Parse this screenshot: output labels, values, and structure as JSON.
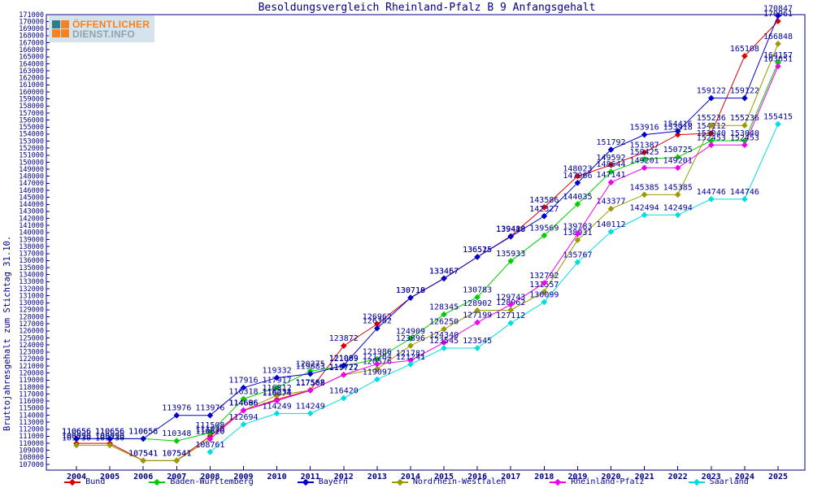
{
  "title": "Besoldungsvergleich Rheinland-Pfalz B 9 Anfangsgehalt",
  "y_axis_title": "Bruttojahresgehalt zum Stichtag 31.10.",
  "logo": {
    "line1": "ÖFFENTLICHER",
    "line2": "DIENST.INFO"
  },
  "colors": {
    "axis": "#000080",
    "labels": "#000099",
    "background": "#ffffff"
  },
  "chart_data": {
    "type": "line",
    "title": "Besoldungsvergleich Rheinland-Pfalz B 9 Anfangsgehalt",
    "ylabel": "Bruttojahresgehalt zum Stichtag 31.10.",
    "xlabel": "",
    "grid": false,
    "legend_position": "bottom",
    "ylim": [
      107000,
      171000
    ],
    "ytick_step": 1000,
    "x": [
      2004,
      2005,
      2006,
      2007,
      2008,
      2009,
      2010,
      2011,
      2012,
      2013,
      2014,
      2015,
      2016,
      2017,
      2018,
      2019,
      2020,
      2021,
      2022,
      2023,
      2024,
      2025
    ],
    "series": [
      {
        "name": "Bund",
        "color": "#dd0000",
        "values": [
          109990,
          109990,
          107541,
          107541,
          111020,
          114686,
          116234,
          117568,
          123872,
          126962,
          130710,
          133457,
          136515,
          139488,
          143586,
          148023,
          149592,
          151387,
          153918,
          154112,
          165108,
          170061
        ]
      },
      {
        "name": "Baden-Württemberg",
        "color": "#00cc00",
        "values": [
          110656,
          110656,
          110656,
          110348,
          111508,
          116318,
          117917,
          120275,
          121009,
          121986,
          124909,
          128345,
          130783,
          135933,
          139569,
          144035,
          148644,
          150425,
          150725,
          153040,
          153040,
          164157
        ]
      },
      {
        "name": "Bayern",
        "color": "#0000cc",
        "values": [
          110656,
          110656,
          110656,
          113976,
          113976,
          117916,
          119332,
          119883,
          121089,
          126362,
          130718,
          133467,
          136525,
          139418,
          142327,
          147066,
          151792,
          153916,
          154416,
          159122,
          159122,
          170847
        ]
      },
      {
        "name": "Nordrhein-Westfalen",
        "color": "#999900",
        "values": [
          109730,
          109730,
          107541,
          107541,
          110620,
          114696,
          116812,
          117562,
          119727,
          120576,
          123896,
          126250,
          128902,
          128962,
          131557,
          138931,
          143377,
          145385,
          145385,
          155236,
          155236,
          166848
        ]
      },
      {
        "name": "Rheinland-Pfalz",
        "color": "#ee00ee",
        "values": [
          null,
          null,
          null,
          null,
          110620,
          114686,
          116074,
          117508,
          119772,
          121284,
          121782,
          124340,
          127199,
          129743,
          132792,
          139783,
          147141,
          149201,
          149201,
          152453,
          152453,
          163651
        ]
      },
      {
        "name": "Saarland",
        "color": "#00dddd",
        "values": [
          null,
          null,
          null,
          null,
          108761,
          112694,
          114249,
          114249,
          116420,
          119097,
          121241,
          123545,
          123545,
          127112,
          130099,
          135767,
          140112,
          142494,
          142494,
          144746,
          144746,
          155415
        ]
      }
    ]
  }
}
